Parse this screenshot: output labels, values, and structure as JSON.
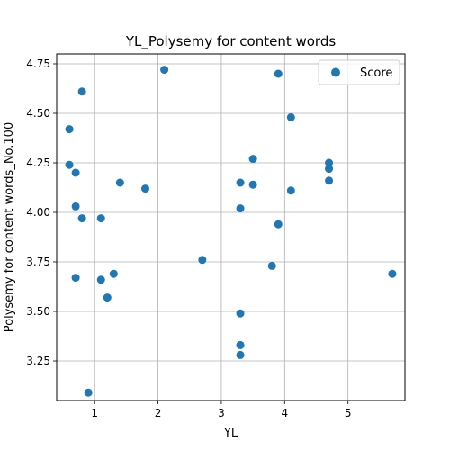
{
  "chart_data": {
    "type": "scatter",
    "title": "YL_Polysemy for content words",
    "xlabel": "YL",
    "ylabel": "Polysemy for content words_No.100",
    "xlim": [
      0.4,
      5.9
    ],
    "ylim": [
      3.05,
      4.8
    ],
    "xticks": [
      1,
      2,
      3,
      4,
      5
    ],
    "yticks": [
      3.25,
      3.5,
      3.75,
      4.0,
      4.25,
      4.5,
      4.75
    ],
    "ytick_labels": [
      "3.25",
      "3.50",
      "3.75",
      "4.00",
      "4.25",
      "4.50",
      "4.75"
    ],
    "grid": true,
    "legend_position": "top-right",
    "color": "#1f77b4",
    "series": [
      {
        "name": "Score",
        "points": [
          {
            "x": 0.6,
            "y": 4.42
          },
          {
            "x": 0.6,
            "y": 4.24
          },
          {
            "x": 0.7,
            "y": 4.2
          },
          {
            "x": 0.7,
            "y": 4.03
          },
          {
            "x": 0.7,
            "y": 3.67
          },
          {
            "x": 0.8,
            "y": 4.61
          },
          {
            "x": 0.8,
            "y": 3.97
          },
          {
            "x": 0.9,
            "y": 3.09
          },
          {
            "x": 1.1,
            "y": 3.97
          },
          {
            "x": 1.1,
            "y": 3.66
          },
          {
            "x": 1.2,
            "y": 3.57
          },
          {
            "x": 1.3,
            "y": 3.69
          },
          {
            "x": 1.4,
            "y": 4.15
          },
          {
            "x": 1.8,
            "y": 4.12
          },
          {
            "x": 2.1,
            "y": 4.72
          },
          {
            "x": 2.7,
            "y": 3.76
          },
          {
            "x": 3.3,
            "y": 4.15
          },
          {
            "x": 3.3,
            "y": 4.02
          },
          {
            "x": 3.3,
            "y": 3.49
          },
          {
            "x": 3.3,
            "y": 3.33
          },
          {
            "x": 3.3,
            "y": 3.28
          },
          {
            "x": 3.5,
            "y": 4.27
          },
          {
            "x": 3.5,
            "y": 4.14
          },
          {
            "x": 3.8,
            "y": 3.73
          },
          {
            "x": 3.9,
            "y": 4.7
          },
          {
            "x": 3.9,
            "y": 3.94
          },
          {
            "x": 4.1,
            "y": 4.48
          },
          {
            "x": 4.1,
            "y": 4.11
          },
          {
            "x": 4.7,
            "y": 4.25
          },
          {
            "x": 4.7,
            "y": 4.22
          },
          {
            "x": 4.7,
            "y": 4.16
          },
          {
            "x": 5.7,
            "y": 3.69
          }
        ]
      }
    ]
  }
}
